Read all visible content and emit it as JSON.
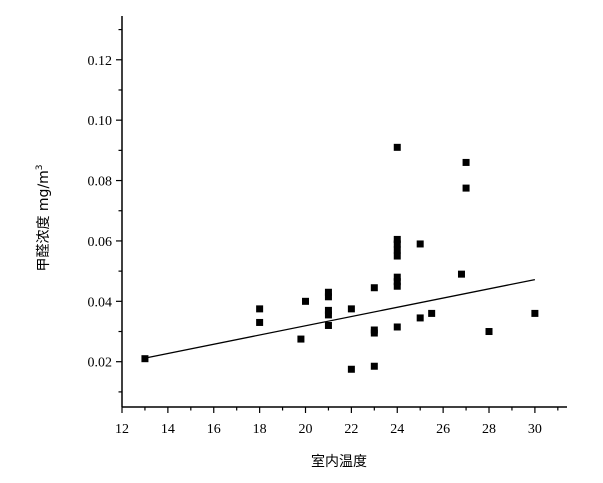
{
  "chart_data": {
    "type": "scatter",
    "title": "",
    "xlabel": "室内温度",
    "ylabel": "甲醛浓度 mg/m",
    "ylabel_superscript": "3",
    "xlim": [
      12,
      31.4
    ],
    "ylim": [
      0.005,
      0.1345
    ],
    "x_ticks": [
      12,
      14,
      16,
      18,
      20,
      22,
      24,
      26,
      28,
      30
    ],
    "y_ticks": [
      0.02,
      0.04,
      0.06,
      0.08,
      0.1,
      0.12
    ],
    "x_tick_labels": [
      "12",
      "14",
      "16",
      "18",
      "20",
      "22",
      "24",
      "26",
      "28",
      "30"
    ],
    "y_tick_labels": [
      "0.02",
      "0.04",
      "0.06",
      "0.08",
      "0.10",
      "0.12"
    ],
    "grid": false,
    "points": [
      {
        "x": 13,
        "y": 0.021
      },
      {
        "x": 18,
        "y": 0.0375
      },
      {
        "x": 18,
        "y": 0.033
      },
      {
        "x": 19.8,
        "y": 0.0275
      },
      {
        "x": 20,
        "y": 0.04
      },
      {
        "x": 21,
        "y": 0.043
      },
      {
        "x": 21,
        "y": 0.0415
      },
      {
        "x": 21,
        "y": 0.037
      },
      {
        "x": 21,
        "y": 0.0355
      },
      {
        "x": 21,
        "y": 0.032
      },
      {
        "x": 22,
        "y": 0.0375
      },
      {
        "x": 22,
        "y": 0.0175
      },
      {
        "x": 23,
        "y": 0.0445
      },
      {
        "x": 23,
        "y": 0.0305
      },
      {
        "x": 23,
        "y": 0.0295
      },
      {
        "x": 23,
        "y": 0.0185
      },
      {
        "x": 24,
        "y": 0.091
      },
      {
        "x": 24,
        "y": 0.0605
      },
      {
        "x": 24,
        "y": 0.059
      },
      {
        "x": 24,
        "y": 0.057
      },
      {
        "x": 24,
        "y": 0.055
      },
      {
        "x": 24,
        "y": 0.048
      },
      {
        "x": 24,
        "y": 0.0465
      },
      {
        "x": 24,
        "y": 0.045
      },
      {
        "x": 24,
        "y": 0.0315
      },
      {
        "x": 25,
        "y": 0.059
      },
      {
        "x": 25,
        "y": 0.0345
      },
      {
        "x": 25.5,
        "y": 0.036
      },
      {
        "x": 26.8,
        "y": 0.049
      },
      {
        "x": 27,
        "y": 0.086
      },
      {
        "x": 27,
        "y": 0.0775
      },
      {
        "x": 28,
        "y": 0.03
      },
      {
        "x": 30,
        "y": 0.036
      }
    ],
    "trend_line": {
      "x": [
        13,
        30
      ],
      "y": [
        0.0212,
        0.0472
      ]
    }
  }
}
